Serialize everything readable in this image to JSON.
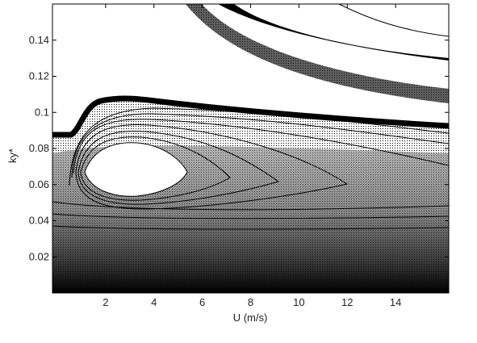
{
  "chart_data": {
    "type": "contour",
    "xlabel": "U (m/s)",
    "ylabel": "ky*",
    "xlim": [
      -0.2,
      16.2
    ],
    "ylim": [
      0,
      0.16
    ],
    "xticks": [
      2,
      4,
      6,
      8,
      10,
      12,
      14
    ],
    "yticks": [
      0.02,
      0.04,
      0.06,
      0.08,
      0.1,
      0.12,
      0.14
    ]
  }
}
